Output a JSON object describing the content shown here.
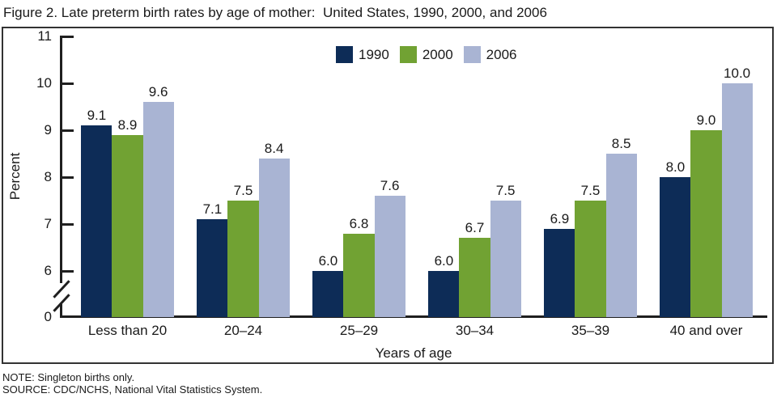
{
  "figure": {
    "title": "Figure 2. Late preterm birth rates by age of mother:  United States, 1990, 2000, and 2006",
    "note": "NOTE: Singleton births only.",
    "source": "SOURCE: CDC/NCHS, National Vital Statistics System."
  },
  "chart_data": {
    "type": "bar",
    "categories": [
      "Less than 20",
      "20–24",
      "25–29",
      "30–34",
      "35–39",
      "40 and over"
    ],
    "series": [
      {
        "name": "1990",
        "color": "#0d2c57",
        "values": [
          9.1,
          7.1,
          6.0,
          6.0,
          6.9,
          8.0
        ]
      },
      {
        "name": "2000",
        "color": "#71a233",
        "values": [
          8.9,
          7.5,
          6.8,
          6.7,
          7.5,
          9.0
        ]
      },
      {
        "name": "2006",
        "color": "#a9b4d3",
        "values": [
          9.6,
          8.4,
          7.6,
          7.5,
          8.5,
          10.0
        ]
      }
    ],
    "title": "Late preterm birth rates by age of mother",
    "xlabel": "Years of age",
    "ylabel": "Percent",
    "yticks": [
      0,
      6,
      7,
      8,
      9,
      10,
      11
    ],
    "ylim": [
      0,
      11
    ],
    "axis_break_between": [
      0,
      6
    ],
    "grid": false,
    "legend_position": "top-center",
    "value_labels": true,
    "value_label_decimals": 1,
    "axis_color": "#1f1f1f",
    "border_color": "#333333"
  }
}
